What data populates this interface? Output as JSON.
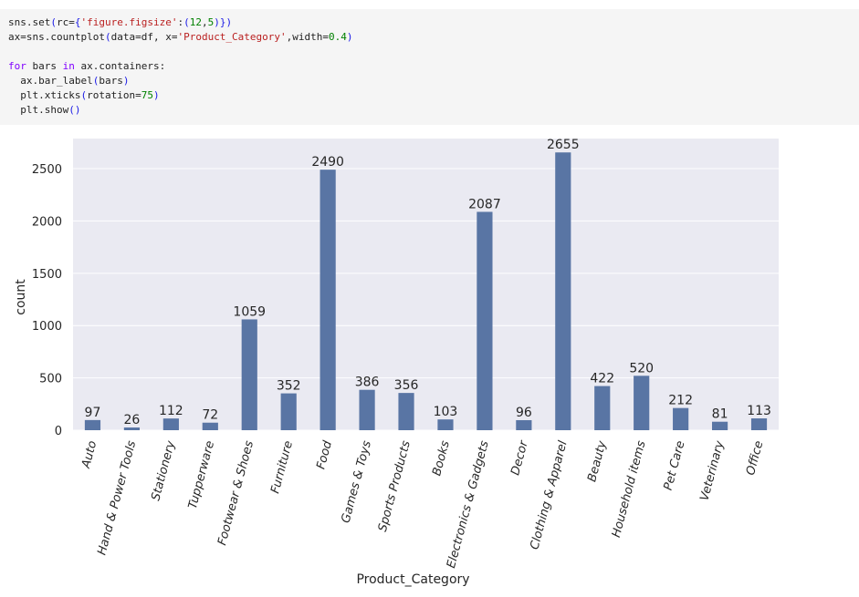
{
  "code": {
    "lines": [
      [
        {
          "t": "sns.set",
          "c": "fn"
        },
        {
          "t": "(",
          "c": "paren"
        },
        {
          "t": "rc=",
          "c": "plain"
        },
        {
          "t": "{",
          "c": "paren"
        },
        {
          "t": "'figure.figsize'",
          "c": "str"
        },
        {
          "t": ":",
          "c": "plain"
        },
        {
          "t": "(",
          "c": "paren"
        },
        {
          "t": "12",
          "c": "num"
        },
        {
          "t": ",",
          "c": "plain"
        },
        {
          "t": "5",
          "c": "num"
        },
        {
          "t": ")",
          "c": "paren"
        },
        {
          "t": "}",
          "c": "paren"
        },
        {
          "t": ")",
          "c": "paren"
        }
      ],
      [
        {
          "t": "ax=sns.countplot",
          "c": "fn"
        },
        {
          "t": "(",
          "c": "paren"
        },
        {
          "t": "data=df, x=",
          "c": "plain"
        },
        {
          "t": "'Product_Category'",
          "c": "str"
        },
        {
          "t": ",width=",
          "c": "plain"
        },
        {
          "t": "0.4",
          "c": "num"
        },
        {
          "t": ")",
          "c": "paren"
        }
      ],
      [],
      [
        {
          "t": "for",
          "c": "kw"
        },
        {
          "t": " bars ",
          "c": "plain"
        },
        {
          "t": "in",
          "c": "kw"
        },
        {
          "t": " ax.containers:",
          "c": "plain"
        }
      ],
      [
        {
          "t": "  ax.bar_label",
          "c": "fn"
        },
        {
          "t": "(",
          "c": "paren"
        },
        {
          "t": "bars",
          "c": "plain"
        },
        {
          "t": ")",
          "c": "paren"
        }
      ],
      [
        {
          "t": "  plt.xticks",
          "c": "fn"
        },
        {
          "t": "(",
          "c": "paren"
        },
        {
          "t": "rotation=",
          "c": "plain"
        },
        {
          "t": "75",
          "c": "num"
        },
        {
          "t": ")",
          "c": "paren"
        }
      ],
      [
        {
          "t": "  plt.show",
          "c": "fn"
        },
        {
          "t": "()",
          "c": "paren"
        }
      ]
    ]
  },
  "colors": {
    "bar": "#5975a4",
    "axes_bg": "#eaeaf2",
    "grid": "#ffffff",
    "text": "#262626"
  },
  "chart_data": {
    "type": "bar",
    "categories": [
      "Auto",
      "Hand & Power Tools",
      "Stationery",
      "Tupperware",
      "Footwear & Shoes",
      "Furniture",
      "Food",
      "Games & Toys",
      "Sports Products",
      "Books",
      "Electronics & Gadgets",
      "Decor",
      "Clothing & Apparel",
      "Beauty",
      "Household items",
      "Pet Care",
      "Veterinary",
      "Office"
    ],
    "values": [
      97,
      26,
      112,
      72,
      1059,
      352,
      2490,
      386,
      356,
      103,
      2087,
      96,
      2655,
      422,
      520,
      212,
      81,
      113
    ],
    "xlabel": "Product_Category",
    "ylabel": "count",
    "yticks": [
      0,
      500,
      1000,
      1500,
      2000,
      2500
    ],
    "ylim": [
      0,
      2787.75
    ],
    "grid": true,
    "xtick_rotation": 75,
    "bar_labels": true
  }
}
